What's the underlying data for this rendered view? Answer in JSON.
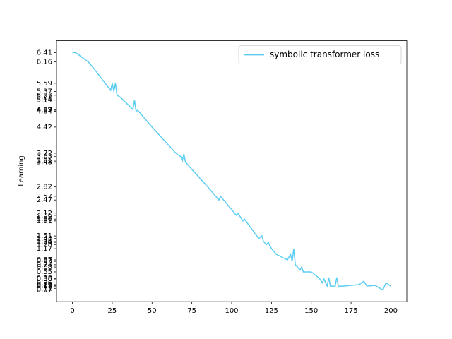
{
  "chart_data": {
    "type": "line",
    "ylabel": "Learning",
    "x": [
      0,
      2,
      10,
      15,
      24,
      25,
      26,
      27,
      28,
      30,
      38,
      39,
      40,
      41,
      50,
      65,
      68,
      69,
      70,
      71,
      85,
      92,
      93,
      103,
      104,
      107,
      108,
      117,
      119,
      120,
      122,
      123,
      125,
      128,
      135,
      137,
      138,
      139,
      140,
      143,
      144,
      145,
      150,
      155,
      157,
      158,
      160,
      161,
      162,
      165,
      166,
      167,
      170,
      175,
      180,
      183,
      185,
      190,
      195,
      197,
      200
    ],
    "series": [
      {
        "name": "symbolic transformer loss",
        "color": "#5bcdf2",
        "values": [
          6.41,
          6.41,
          6.16,
          5.9,
          5.4,
          5.59,
          5.37,
          5.59,
          5.27,
          5.22,
          4.89,
          5.14,
          4.84,
          4.87,
          4.42,
          3.72,
          3.63,
          3.51,
          3.7,
          3.48,
          2.82,
          2.47,
          2.57,
          2.06,
          2.12,
          1.91,
          1.96,
          1.44,
          1.51,
          1.36,
          1.28,
          1.34,
          1.17,
          1.02,
          0.87,
          1.02,
          0.83,
          1.17,
          0.74,
          0.6,
          0.68,
          0.55,
          0.55,
          0.38,
          0.26,
          0.36,
          0.17,
          0.4,
          0.17,
          0.17,
          0.4,
          0.17,
          0.17,
          0.19,
          0.21,
          0.3,
          0.17,
          0.19,
          0.07,
          0.26,
          0.17
        ]
      }
    ],
    "xlim": [
      -10,
      210
    ],
    "xticks": [
      0,
      25,
      50,
      75,
      100,
      125,
      150,
      175,
      200
    ],
    "ylim": [
      -0.247,
      6.727
    ],
    "yticks": [
      6.41,
      6.16,
      5.59,
      5.37,
      5.27,
      5.22,
      5.14,
      4.89,
      4.87,
      4.84,
      4.42,
      3.72,
      3.63,
      3.51,
      3.48,
      2.82,
      2.57,
      2.47,
      2.12,
      2.06,
      1.96,
      1.91,
      1.51,
      1.44,
      1.36,
      1.34,
      1.28,
      1.17,
      0.87,
      0.83,
      0.74,
      0.68,
      0.55,
      0.38,
      0.36,
      0.26,
      0.21,
      0.19,
      0.17,
      0.11,
      0.07
    ],
    "legend": "upper right"
  }
}
